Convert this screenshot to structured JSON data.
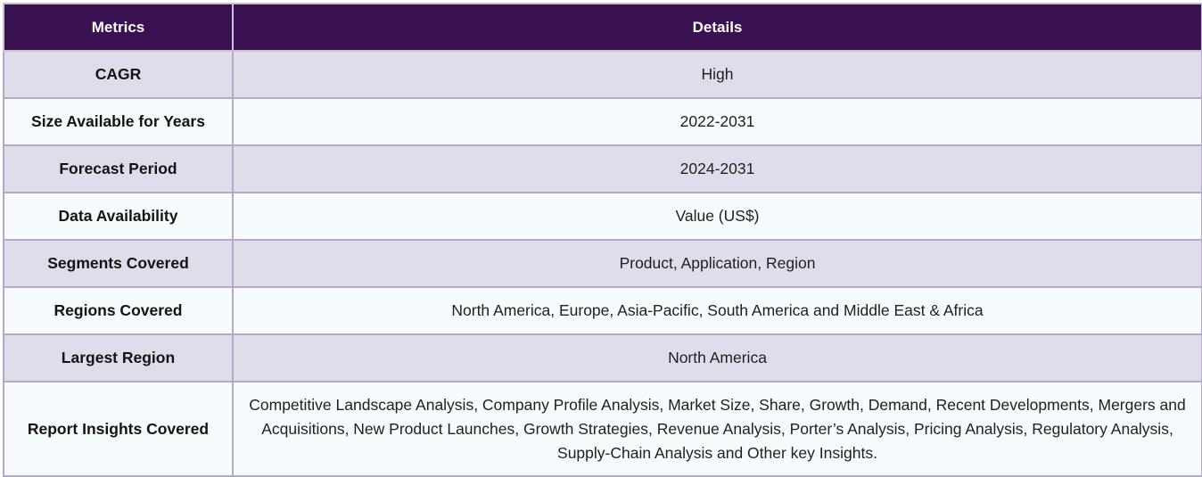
{
  "table": {
    "headers": [
      "Metrics",
      "Details"
    ],
    "rows": [
      {
        "metric": "CAGR",
        "details": "High"
      },
      {
        "metric": "Size Available for Years",
        "details": "2022-2031"
      },
      {
        "metric": "Forecast Period",
        "details": "2024-2031"
      },
      {
        "metric": "Data Availability",
        "details": "Value (US$)"
      },
      {
        "metric": "Segments Covered",
        "details": "Product, Application, Region"
      },
      {
        "metric": "Regions Covered",
        "details": "North America, Europe, Asia-Pacific, South America and Middle East & Africa"
      },
      {
        "metric": "Largest Region",
        "details": "North America"
      },
      {
        "metric": "Report Insights Covered",
        "details": "Competitive Landscape Analysis, Company Profile Analysis, Market Size, Share, Growth, Demand, Recent Developments, Mergers and Acquisitions, New Product Launches, Growth Strategies, Revenue Analysis, Porter’s Analysis, Pricing Analysis, Regulatory Analysis, Supply-Chain Analysis and Other key Insights."
      }
    ]
  },
  "colors": {
    "header_bg": "#3a1150",
    "header_text": "#ffffff",
    "row_odd_bg": "#e1dcea",
    "row_even_bg": "#f6fbfd",
    "border": "#b3a9c9"
  }
}
